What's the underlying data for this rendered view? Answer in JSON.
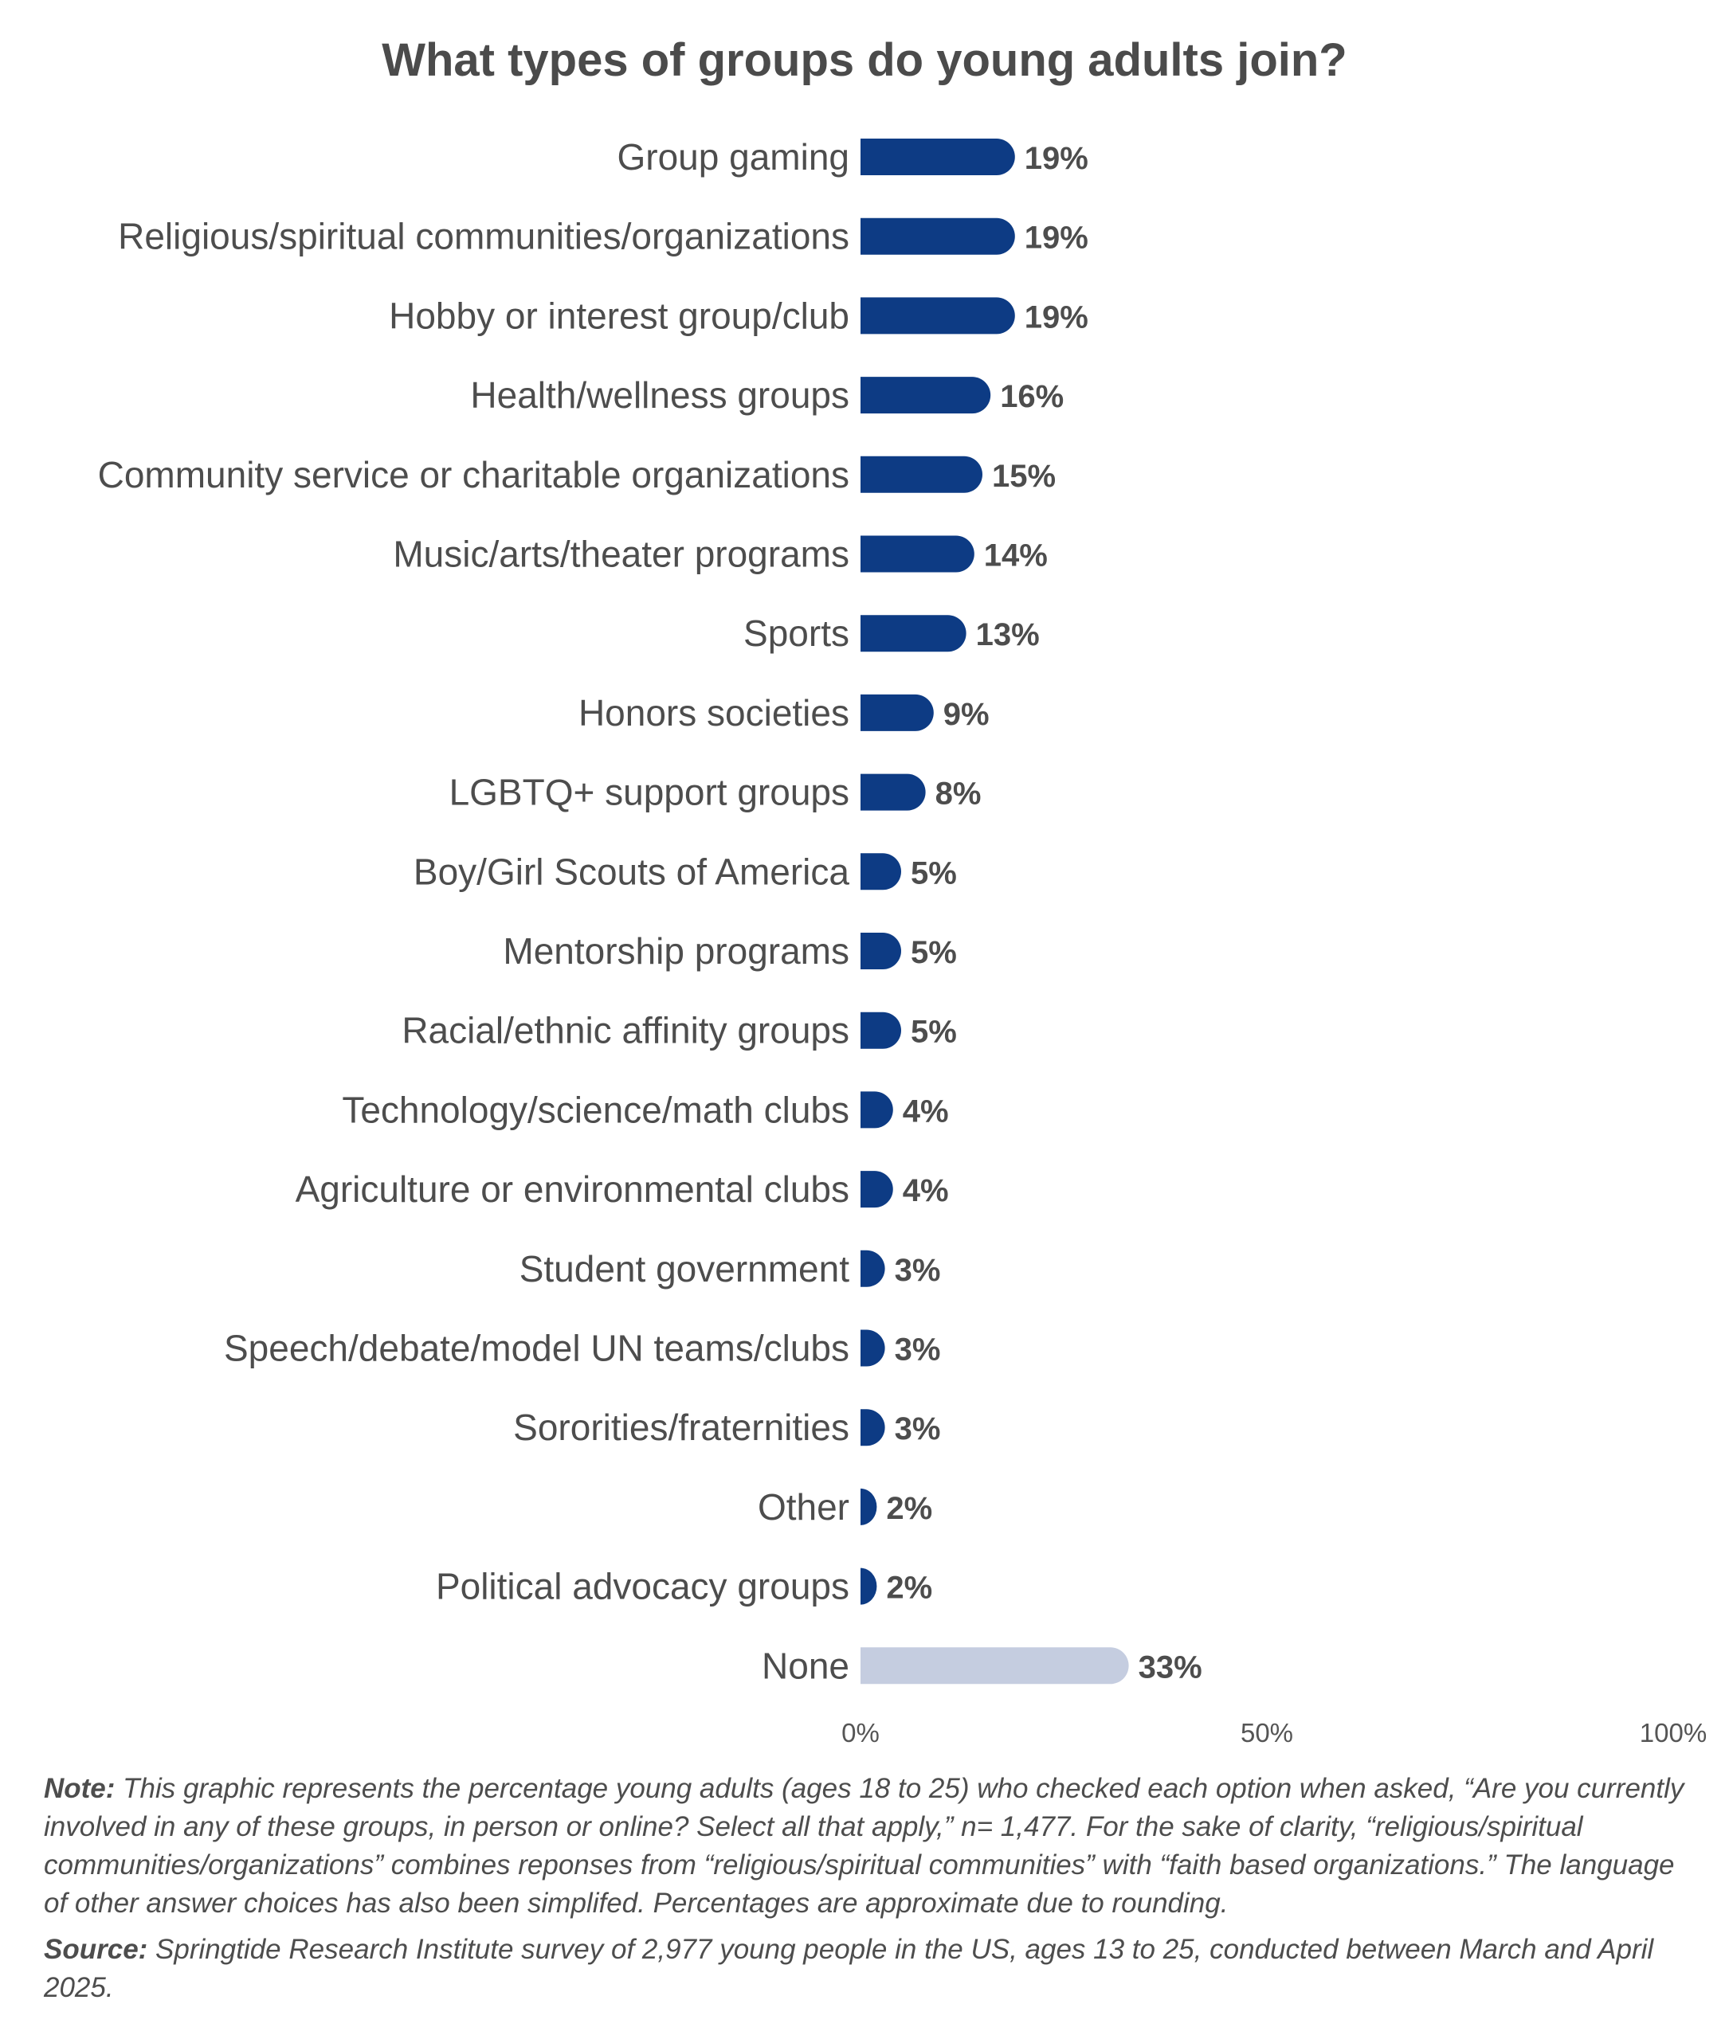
{
  "chart_data": {
    "type": "bar",
    "orientation": "horizontal",
    "title": "What types of groups do young adults join?",
    "categories": [
      "Group gaming",
      "Religious/spiritual communities/organizations",
      "Hobby or interest group/club",
      "Health/wellness groups",
      "Community service or charitable organizations",
      "Music/arts/theater programs",
      "Sports",
      "Honors societies",
      "LGBTQ+ support groups",
      "Boy/Girl Scouts of America",
      "Mentorship programs",
      "Racial/ethnic affinity groups",
      "Technology/science/math clubs",
      "Agriculture or environmental clubs",
      "Student government",
      "Speech/debate/model UN teams/clubs",
      "Sororities/fraternities",
      "Other",
      "Political advocacy groups",
      "None"
    ],
    "values": [
      19,
      19,
      19,
      16,
      15,
      14,
      13,
      9,
      8,
      5,
      5,
      5,
      4,
      4,
      3,
      3,
      3,
      2,
      2,
      33
    ],
    "value_labels": [
      "19%",
      "19%",
      "19%",
      "16%",
      "15%",
      "14%",
      "13%",
      "9%",
      "8%",
      "5%",
      "5%",
      "5%",
      "4%",
      "4%",
      "3%",
      "3%",
      "3%",
      "2%",
      "2%",
      "33%"
    ],
    "xlim": [
      0,
      100
    ],
    "x_ticks": [
      "0%",
      "50%",
      "100%"
    ],
    "grid": false,
    "colors": {
      "primary": "#0d3b84",
      "highlight_none": "#c5cde0"
    }
  },
  "notes": {
    "note_label": "Note:",
    "note_text": " This graphic represents the percentage young adults (ages 18 to 25) who checked each option when asked, “Are you currently involved in any of these groups, in person or online? Select all that apply,” n= 1,477. For the sake of clarity, “religious/spiritual communities/organizations” combines reponses from “religious/spiritual communities” with “faith based organizations.” The language of other answer choices has also been simplifed. Percentages are approximate due to rounding.",
    "source_label": "Source:",
    "source_text": " Springtide Research Institute survey of 2,977 young people in the US, ages 13 to 25, conducted between March and April 2025."
  }
}
